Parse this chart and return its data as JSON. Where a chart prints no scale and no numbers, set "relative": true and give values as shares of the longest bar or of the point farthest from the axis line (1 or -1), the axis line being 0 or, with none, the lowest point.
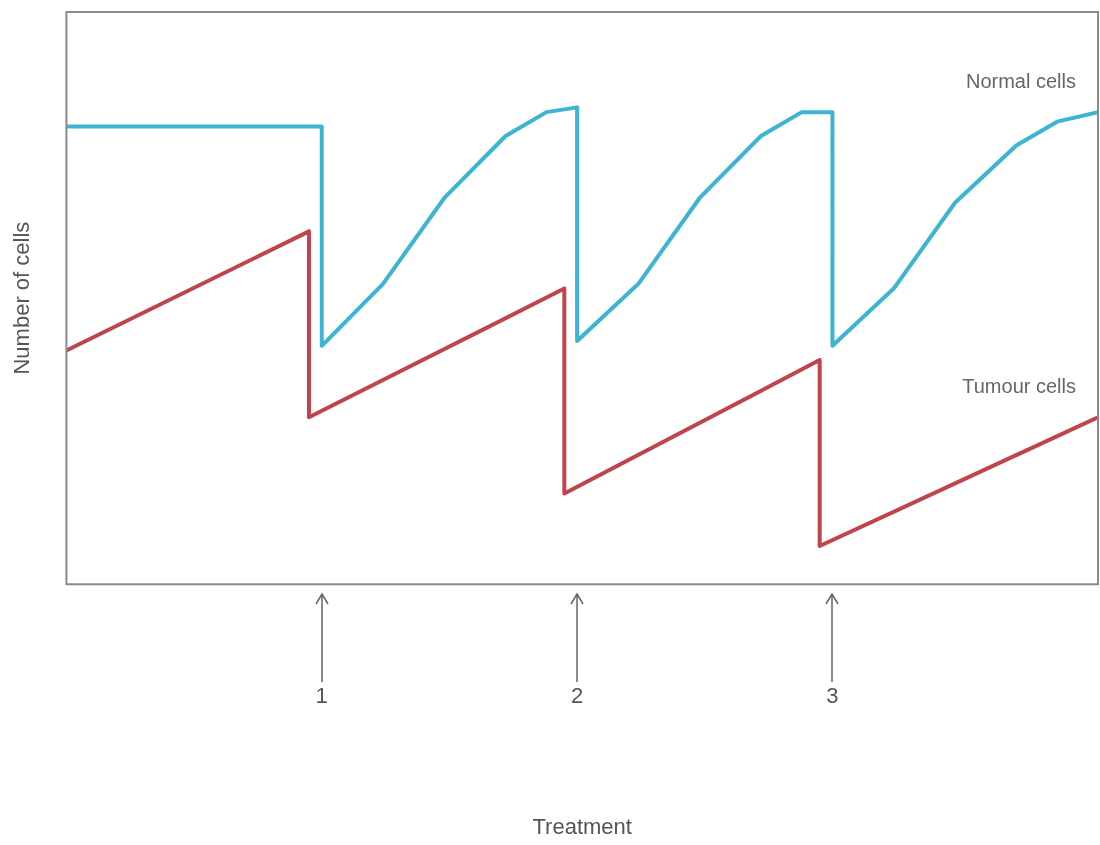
{
  "chart_data": {
    "type": "line",
    "xlabel": "Treatment",
    "ylabel": "Number of cells",
    "relative": true,
    "xlim": [
      0,
      4.04
    ],
    "xticks": [
      1,
      2,
      3
    ],
    "grid": false,
    "marker": "none",
    "line_style": "solid",
    "series": [
      {
        "name": "Normal cells",
        "color": "#3cb4d2",
        "x": [
          0,
          1,
          1,
          1.24,
          1.48,
          1.72,
          1.88,
          2,
          2,
          2.24,
          2.48,
          2.72,
          2.88,
          3,
          3,
          3.24,
          3.48,
          3.72,
          3.88,
          4.04
        ],
        "values": [
          0.96,
          0.96,
          0.5,
          0.63,
          0.81,
          0.94,
          0.99,
          1.0,
          0.51,
          0.63,
          0.81,
          0.94,
          0.99,
          0.99,
          0.5,
          0.62,
          0.8,
          0.92,
          0.97,
          0.99
        ]
      },
      {
        "name": "Tumour cells",
        "color": "#c0444c",
        "x": [
          0,
          0.95,
          0.95,
          1.95,
          1.95,
          2.95,
          2.95,
          4.04
        ],
        "values": [
          0.49,
          0.74,
          0.35,
          0.62,
          0.19,
          0.47,
          0.08,
          0.35
        ]
      }
    ]
  }
}
